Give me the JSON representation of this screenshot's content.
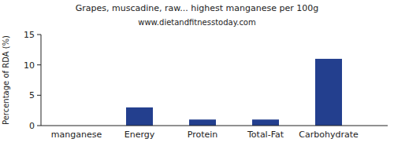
{
  "chart_data": {
    "type": "bar",
    "title": "Grapes, muscadine, raw... highest manganese per 100g",
    "subtitle": "www.dietandfitnesstoday.com",
    "y_label": "Percentage of RDA (%)",
    "categories": [
      "manganese",
      "Energy",
      "Protein",
      "Total-Fat",
      "Carbohydrate"
    ],
    "values": [
      0,
      3,
      1,
      1,
      11
    ],
    "color": "#233f8e",
    "ylim": [
      0,
      15
    ],
    "yticks": [
      0,
      5,
      10,
      15
    ],
    "grid": false
  }
}
